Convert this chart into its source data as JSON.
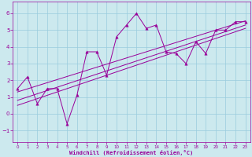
{
  "xlabel": "Windchill (Refroidissement éolien,°C)",
  "xlim": [
    -0.5,
    23.5
  ],
  "ylim": [
    -1.7,
    6.7
  ],
  "yticks": [
    -1,
    0,
    1,
    2,
    3,
    4,
    5,
    6
  ],
  "xticks": [
    0,
    1,
    2,
    3,
    4,
    5,
    6,
    7,
    8,
    9,
    10,
    11,
    12,
    13,
    14,
    15,
    16,
    17,
    18,
    19,
    20,
    21,
    22,
    23
  ],
  "bg_color": "#cce9ee",
  "line_color": "#990099",
  "grid_color": "#99ccdd",
  "line1_x": [
    0,
    1,
    2,
    3,
    4,
    5,
    6,
    7,
    8,
    9,
    10,
    11,
    12,
    13,
    14,
    15,
    16,
    17,
    18,
    19,
    20,
    21,
    22,
    23
  ],
  "line1_y": [
    1.5,
    2.2,
    0.6,
    1.5,
    1.5,
    -0.6,
    1.1,
    3.7,
    3.7,
    2.3,
    4.6,
    5.3,
    6.0,
    5.1,
    5.3,
    3.7,
    3.6,
    3.0,
    4.3,
    3.6,
    5.0,
    5.0,
    5.5,
    5.5
  ],
  "line2_x": [
    0,
    23
  ],
  "line2_y": [
    0.8,
    5.3
  ],
  "line3_x": [
    0,
    23
  ],
  "line3_y": [
    1.3,
    5.55
  ],
  "line4_x": [
    0,
    23
  ],
  "line4_y": [
    0.5,
    5.1
  ]
}
